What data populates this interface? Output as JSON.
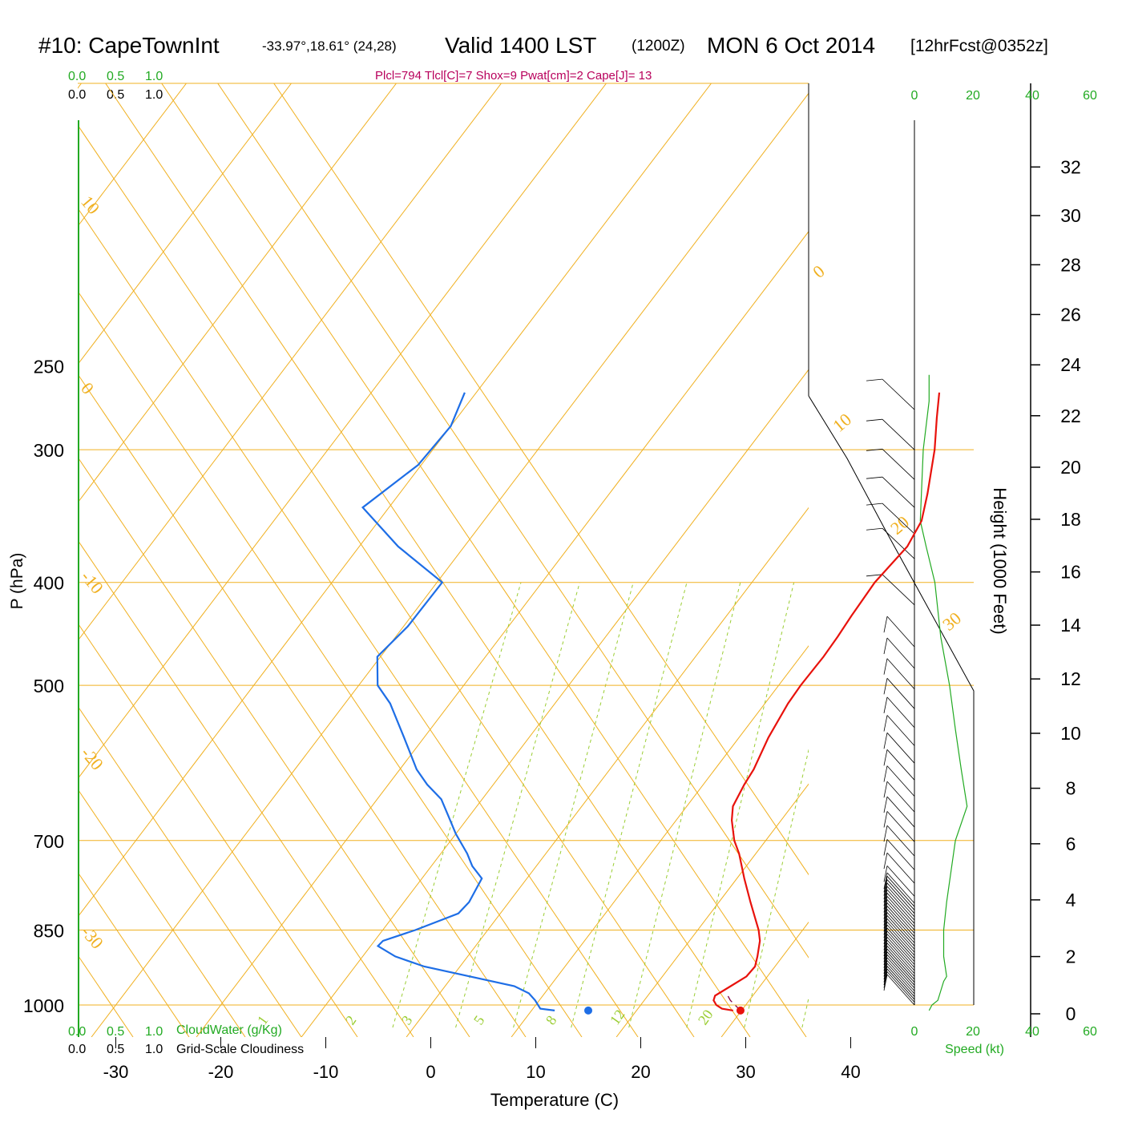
{
  "header": {
    "station": "#10: CapeTownInt",
    "coords": "-33.97°,18.61° (24,28)",
    "valid": "Valid 1400 LST",
    "zulu": "(1200Z)",
    "date": "MON 6 Oct 2014",
    "forecast": "[12hrFcst@0352z]",
    "indices": "Plcl=794 Tlcl[C]=7 Shox=9 Pwat[cm]=2 Cape[J]= 13"
  },
  "cloud_scale": {
    "ticks": [
      "0.0",
      "0.5",
      "1.0"
    ],
    "cloudwater_label": "CloudWater (g/Kg)",
    "cloudiness_label": "Grid-Scale Cloudiness"
  },
  "speed_scale": {
    "ticks": [
      "0",
      "20",
      "40",
      "60"
    ],
    "label": "Speed (kt)"
  },
  "colors": {
    "temperature": "#e8120c",
    "dewpoint": "#1e6ee6",
    "isotherm": "#f0b020",
    "mixing_ratio": "#9acd32",
    "speed": "#22aa22",
    "parcel": "#800040"
  },
  "chart_data": {
    "type": "line",
    "subtype": "skew-T log-P",
    "xlabel": "Temperature (C)",
    "ylabel": "P (hPa)",
    "y2label": "Height (1000 Feet)",
    "x_ticks": [
      -30,
      -20,
      -10,
      0,
      10,
      20,
      30,
      40
    ],
    "p_ticks": [
      250,
      300,
      400,
      500,
      700,
      850,
      1000
    ],
    "height_ticks": [
      0,
      2,
      4,
      6,
      8,
      10,
      12,
      14,
      16,
      18,
      20,
      22,
      24,
      26,
      28,
      30,
      32
    ],
    "pressure_range": [
      250,
      1100
    ],
    "temp_range_at_1000": [
      -34,
      36
    ],
    "isotherm_labels": [
      30,
      20,
      10,
      0,
      -10,
      -20,
      -30,
      -10,
      0,
      10,
      20,
      30
    ],
    "mixing_ratio_labels": [
      "1",
      "2",
      "3",
      "5",
      "8",
      "12",
      "20"
    ],
    "series": [
      {
        "name": "Temperature",
        "points": [
          [
            1012,
            29.2
          ],
          [
            1008,
            28.0
          ],
          [
            1000,
            27.2
          ],
          [
            990,
            26.6
          ],
          [
            980,
            26.4
          ],
          [
            960,
            27.2
          ],
          [
            940,
            28.0
          ],
          [
            920,
            28.1
          ],
          [
            900,
            27.6
          ],
          [
            870,
            26.7
          ],
          [
            850,
            25.8
          ],
          [
            800,
            23.0
          ],
          [
            760,
            20.7
          ],
          [
            720,
            18.4
          ],
          [
            700,
            17.0
          ],
          [
            670,
            15.3
          ],
          [
            650,
            14.4
          ],
          [
            620,
            13.9
          ],
          [
            600,
            13.7
          ],
          [
            560,
            12.8
          ],
          [
            520,
            12.2
          ],
          [
            500,
            12.1
          ],
          [
            470,
            12.2
          ],
          [
            450,
            12.1
          ],
          [
            430,
            11.9
          ],
          [
            400,
            11.7
          ],
          [
            370,
            12.2
          ],
          [
            350,
            11.7
          ],
          [
            330,
            10.3
          ],
          [
            300,
            7.8
          ],
          [
            280,
            5.7
          ],
          [
            265,
            4.1
          ]
        ]
      },
      {
        "name": "Dewpoint",
        "points": [
          [
            1012,
            12.2
          ],
          [
            1008,
            10.7
          ],
          [
            990,
            9.6
          ],
          [
            975,
            8.5
          ],
          [
            960,
            6.6
          ],
          [
            920,
            -3.4
          ],
          [
            900,
            -6.9
          ],
          [
            880,
            -9.3
          ],
          [
            870,
            -9.2
          ],
          [
            850,
            -6.9
          ],
          [
            820,
            -4.0
          ],
          [
            800,
            -3.8
          ],
          [
            760,
            -4.3
          ],
          [
            740,
            -6.1
          ],
          [
            720,
            -7.5
          ],
          [
            690,
            -10.0
          ],
          [
            660,
            -12.3
          ],
          [
            640,
            -13.9
          ],
          [
            620,
            -16.3
          ],
          [
            600,
            -18.4
          ],
          [
            560,
            -21.9
          ],
          [
            520,
            -25.7
          ],
          [
            500,
            -28.2
          ],
          [
            470,
            -30.3
          ],
          [
            440,
            -29.6
          ],
          [
            400,
            -29.5
          ],
          [
            370,
            -36.3
          ],
          [
            340,
            -42.5
          ],
          [
            310,
            -40.3
          ],
          [
            285,
            -40.0
          ],
          [
            265,
            -41.1
          ]
        ]
      }
    ],
    "surface_points": [
      {
        "name": "surface-temperature",
        "pressure": 1012,
        "value": 29.9
      },
      {
        "name": "surface-dewpoint",
        "pressure": 1012,
        "value": 15.4
      }
    ],
    "parcel_path": [
      [
        1012,
        29.9
      ],
      [
        990,
        28.2
      ],
      [
        978,
        27.5
      ]
    ],
    "wind_speed_kt": [
      [
        1012,
        5
      ],
      [
        1000,
        6
      ],
      [
        990,
        8
      ],
      [
        970,
        9
      ],
      [
        950,
        10
      ],
      [
        940,
        11
      ],
      [
        900,
        10
      ],
      [
        850,
        10
      ],
      [
        800,
        11
      ],
      [
        700,
        14
      ],
      [
        650,
        18
      ],
      [
        600,
        16
      ],
      [
        550,
        14
      ],
      [
        500,
        12
      ],
      [
        450,
        9
      ],
      [
        400,
        7
      ],
      [
        370,
        4
      ],
      [
        350,
        2
      ],
      [
        300,
        3
      ],
      [
        270,
        5
      ],
      [
        255,
        5
      ]
    ]
  }
}
